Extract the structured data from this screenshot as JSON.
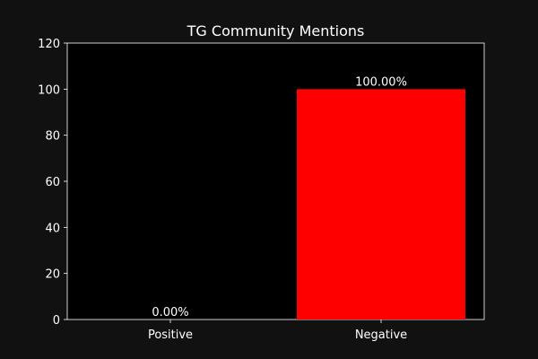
{
  "chart_data": {
    "type": "bar",
    "title": "TG Community Mentions",
    "xlabel": "",
    "ylabel": "",
    "categories": [
      "Positive",
      "Negative"
    ],
    "values": [
      0,
      100
    ],
    "data_labels": [
      "0.00%",
      "100.00%"
    ],
    "ylim": [
      0,
      120
    ],
    "yticks": [
      0,
      20,
      40,
      60,
      80,
      100,
      120
    ],
    "ytick_labels": [
      "0",
      "20",
      "40",
      "60",
      "80",
      "100",
      "120"
    ],
    "grid": false,
    "legend": "none",
    "colors": {
      "background": "#111111",
      "axes": "#000000",
      "bars": [
        "#ff0000",
        "#ff0000"
      ],
      "text": "#ffffff"
    }
  }
}
